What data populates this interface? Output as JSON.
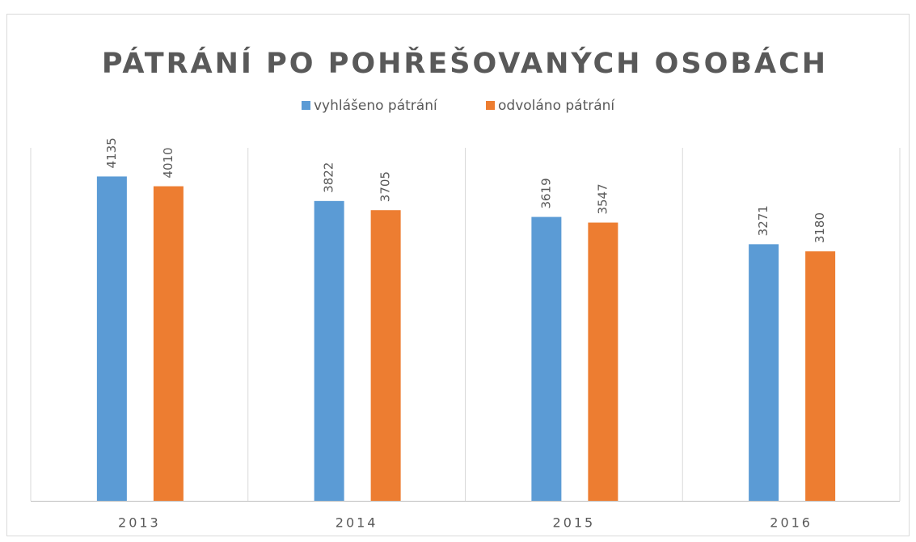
{
  "chart_data": {
    "type": "bar",
    "title": "PÁTRÁNÍ PO POHŘEŠOVANÝCH OSOBÁCH",
    "categories": [
      "2013",
      "2014",
      "2015",
      "2016"
    ],
    "series": [
      {
        "name": "vyhlášeno pátrání",
        "color": "#5b9bd5",
        "values": [
          4135,
          3822,
          3619,
          3271
        ]
      },
      {
        "name": "odvoláno pátrání",
        "color": "#ed7d31",
        "values": [
          4010,
          3705,
          3547,
          3180
        ]
      }
    ],
    "ylim": [
      0,
      4500
    ],
    "legend": "top"
  }
}
